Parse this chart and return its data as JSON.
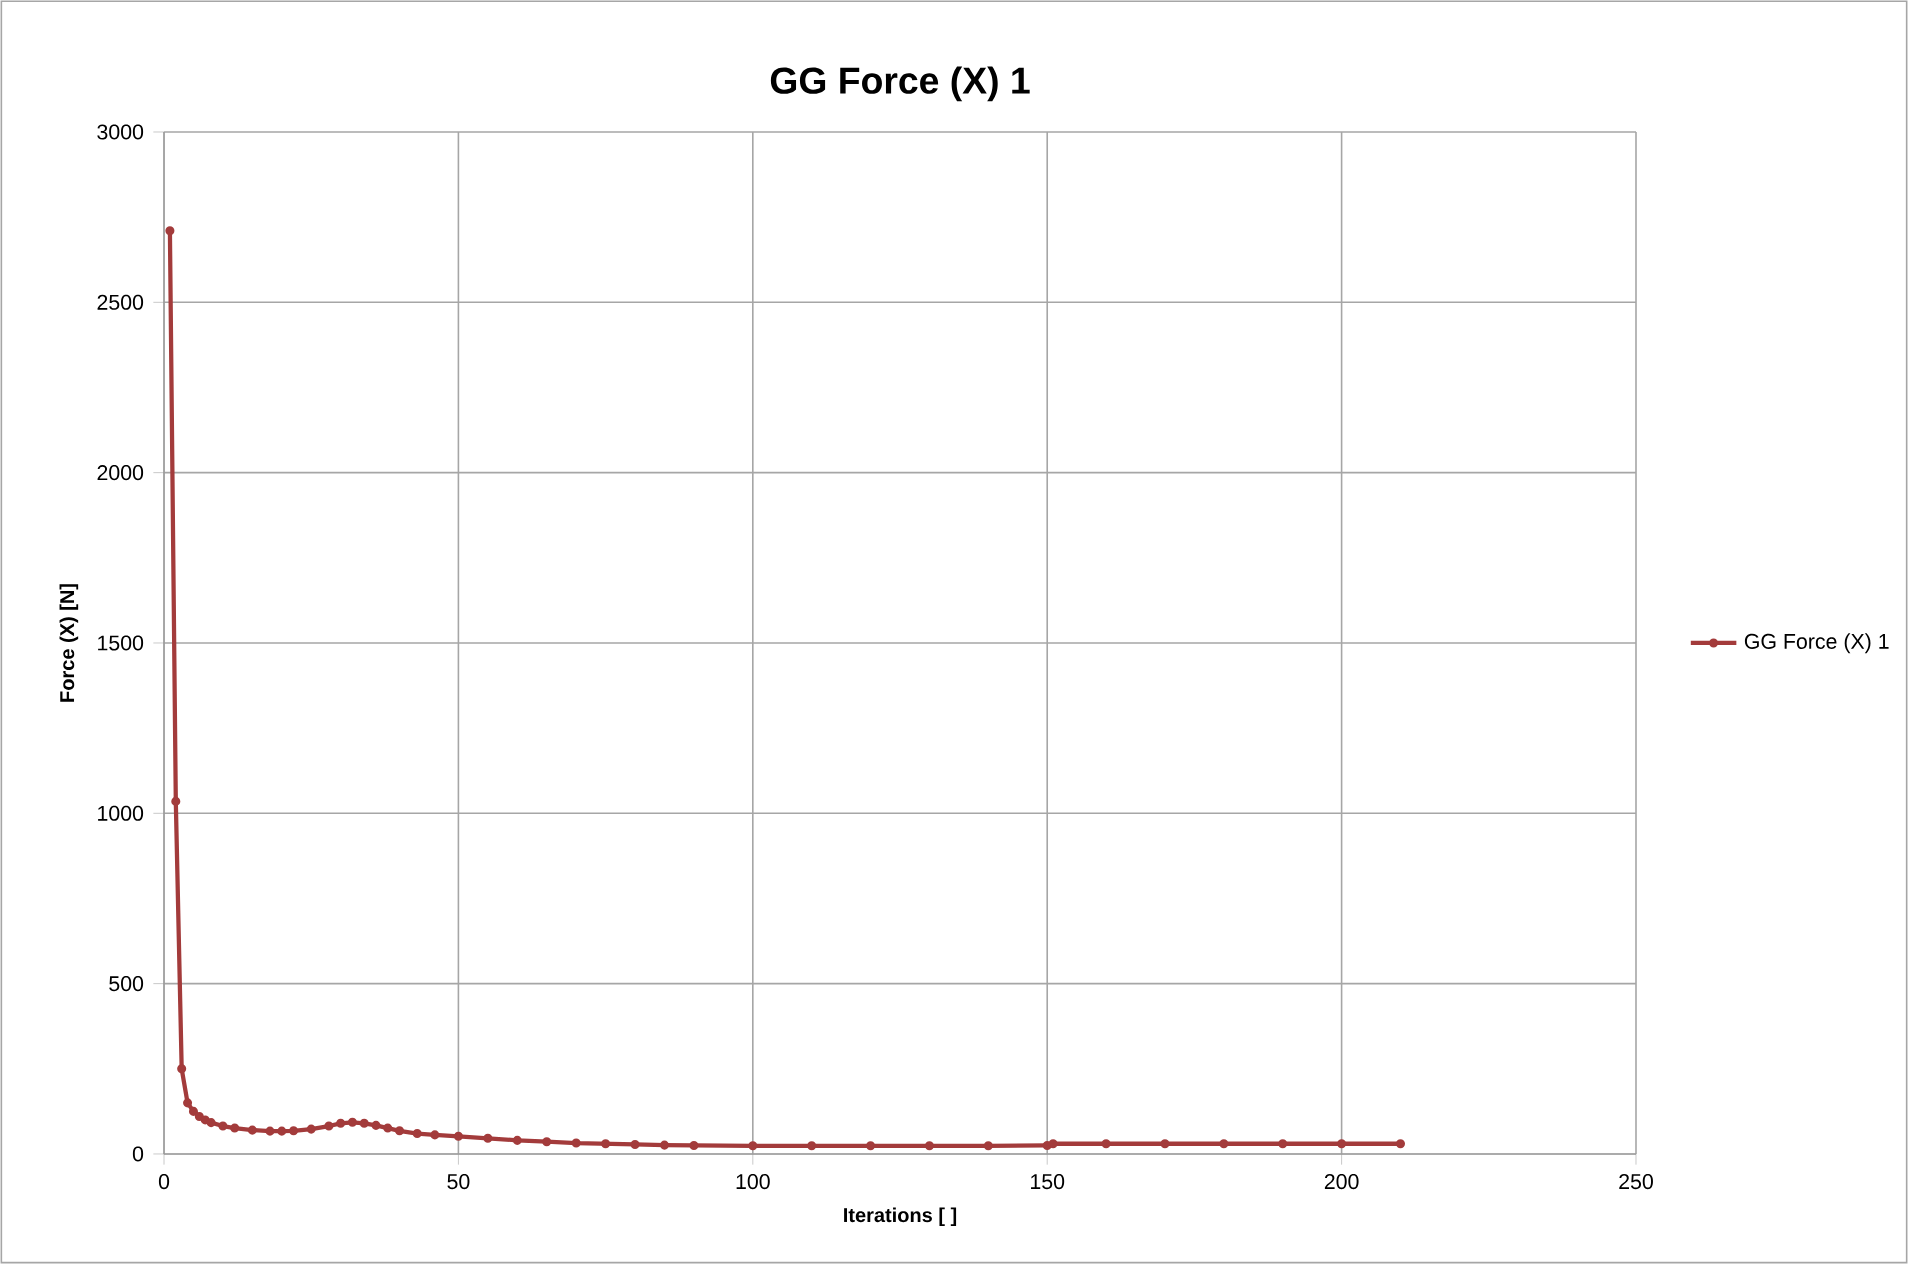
{
  "chart_data": {
    "type": "line",
    "title": "GG Force (X) 1",
    "xlabel": "Iterations [ ]",
    "ylabel": "Force (X) [N]",
    "series": [
      {
        "name": "GG Force (X) 1",
        "color": "#a33b3b",
        "x": [
          1,
          2,
          3,
          4,
          5,
          6,
          7,
          8,
          10,
          12,
          15,
          18,
          20,
          22,
          25,
          28,
          30,
          32,
          34,
          36,
          38,
          40,
          43,
          46,
          50,
          55,
          60,
          65,
          70,
          75,
          80,
          85,
          90,
          100,
          110,
          120,
          130,
          140,
          150,
          151,
          160,
          170,
          180,
          190,
          200,
          210
        ],
        "values": [
          2710,
          1035,
          250,
          150,
          125,
          110,
          100,
          92,
          82,
          76,
          70,
          67,
          67,
          68,
          73,
          82,
          90,
          93,
          90,
          84,
          76,
          68,
          60,
          56,
          52,
          46,
          40,
          36,
          32,
          30,
          28,
          26,
          25,
          24,
          24,
          24,
          24,
          24,
          25,
          30,
          30,
          30,
          30,
          30,
          30,
          30
        ]
      }
    ],
    "xlim": [
      0,
      250
    ],
    "ylim": [
      0,
      3000
    ],
    "xticks": [
      0,
      50,
      100,
      150,
      200,
      250
    ],
    "yticks": [
      0,
      500,
      1000,
      1500,
      2000,
      2500,
      3000
    ],
    "grid": true,
    "legend": "right",
    "marker": "circle",
    "line_style": "solid"
  }
}
